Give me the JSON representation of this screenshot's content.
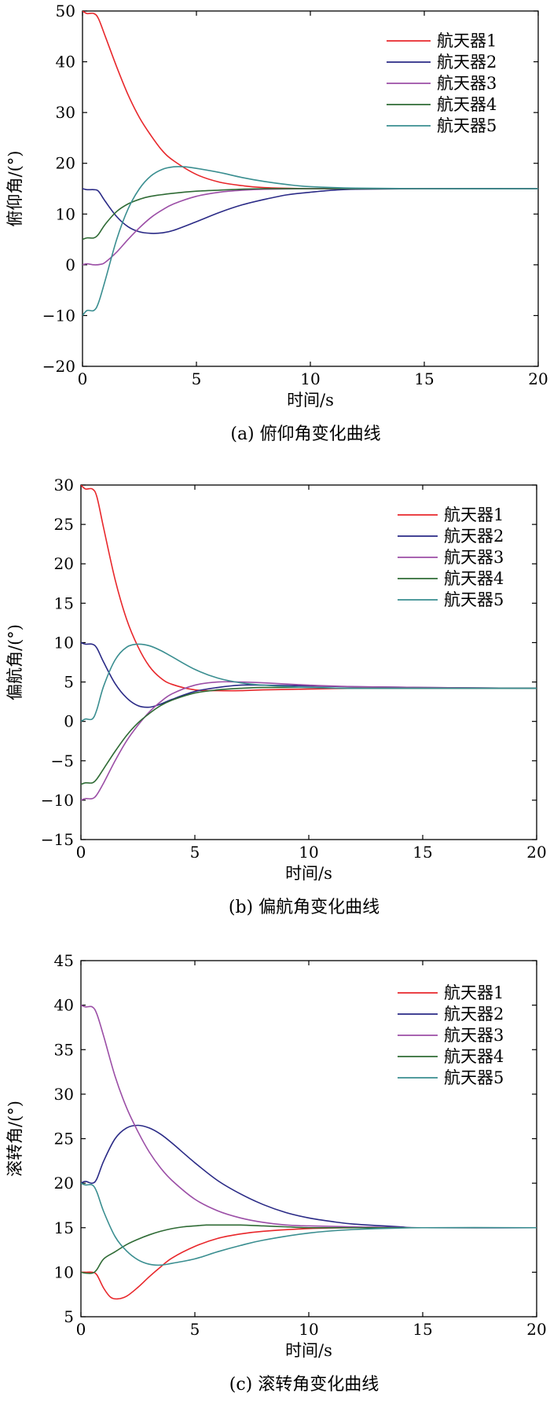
{
  "figure": {
    "background": "#ffffff",
    "series_colors": {
      "航天器1": "#e8272b",
      "航天器2": "#2a2a86",
      "航天器3": "#9b4ea6",
      "航天器4": "#2f6b35",
      "航天器5": "#3a8e90"
    }
  },
  "chart_data": [
    {
      "type": "line",
      "caption": "(a) 俯仰角变化曲线",
      "xlabel": "时间/s",
      "ylabel": "俯仰角/(°)",
      "xlim": [
        0,
        20
      ],
      "ylim": [
        -20,
        50
      ],
      "xticks": [
        0,
        5,
        10,
        15,
        20
      ],
      "yticks": [
        -20,
        -10,
        0,
        10,
        20,
        30,
        40,
        50
      ],
      "grid": false,
      "legend_position": "top-right",
      "series": [
        {
          "name": "航天器1",
          "color": "#e8272b",
          "x": [
            0,
            0.2,
            0.5,
            0.7,
            1,
            1.5,
            2,
            2.5,
            3,
            3.5,
            4,
            5,
            6,
            7,
            8,
            10,
            12,
            15,
            20
          ],
          "y": [
            50,
            49.5,
            49.5,
            48.5,
            45,
            39,
            33.5,
            29,
            25.5,
            22.5,
            20.5,
            17.8,
            16.3,
            15.6,
            15.2,
            15,
            15,
            15,
            15
          ]
        },
        {
          "name": "航天器2",
          "color": "#2a2a86",
          "x": [
            0,
            0.2,
            0.5,
            0.7,
            1,
            1.5,
            2,
            2.5,
            3,
            3.5,
            4,
            5,
            6,
            7,
            8,
            9,
            10,
            11,
            12,
            15,
            20
          ],
          "y": [
            15,
            14.8,
            14.8,
            14.5,
            12.5,
            9.5,
            7.5,
            6.5,
            6.2,
            6.3,
            6.8,
            8.5,
            10.3,
            11.8,
            12.9,
            13.8,
            14.3,
            14.7,
            14.9,
            15,
            15
          ]
        },
        {
          "name": "航天器3",
          "color": "#9b4ea6",
          "x": [
            0,
            0.2,
            0.5,
            0.8,
            1,
            1.5,
            2,
            2.5,
            3,
            3.5,
            4,
            5,
            6,
            7,
            8,
            10,
            12,
            15,
            20
          ],
          "y": [
            0,
            0.2,
            0,
            0.1,
            0.5,
            2.5,
            5,
            7.3,
            9.3,
            10.8,
            12,
            13.5,
            14.3,
            14.7,
            14.9,
            15,
            15,
            15,
            15
          ]
        },
        {
          "name": "航天器4",
          "color": "#2f6b35",
          "x": [
            0,
            0.2,
            0.5,
            0.7,
            1,
            1.5,
            2,
            2.5,
            3,
            4,
            5,
            6,
            7,
            8,
            10,
            12,
            15,
            20
          ],
          "y": [
            5,
            5.3,
            5.3,
            6,
            8,
            10.5,
            12,
            12.9,
            13.5,
            14.1,
            14.5,
            14.7,
            14.9,
            15,
            15,
            15,
            15,
            15
          ]
        },
        {
          "name": "航天器5",
          "color": "#3a8e90",
          "x": [
            0,
            0.2,
            0.5,
            0.7,
            1,
            1.5,
            2,
            2.5,
            3,
            3.5,
            4,
            4.5,
            5,
            6,
            7,
            8,
            9,
            10,
            12,
            15,
            20
          ],
          "y": [
            -10,
            -9,
            -9,
            -7.5,
            -3,
            5,
            11,
            15,
            17.5,
            18.8,
            19.3,
            19.3,
            19,
            18.2,
            17.2,
            16.4,
            15.8,
            15.4,
            15.1,
            15,
            15
          ]
        }
      ]
    },
    {
      "type": "line",
      "caption": "(b) 偏航角变化曲线",
      "xlabel": "时间/s",
      "ylabel": "偏航角/(°)",
      "xlim": [
        0,
        20
      ],
      "ylim": [
        -15,
        30
      ],
      "xticks": [
        0,
        5,
        10,
        15,
        20
      ],
      "yticks": [
        -15,
        -10,
        -5,
        0,
        5,
        10,
        15,
        20,
        25,
        30
      ],
      "grid": false,
      "legend_position": "top-right",
      "series": [
        {
          "name": "航天器1",
          "color": "#e8272b",
          "x": [
            0,
            0.2,
            0.5,
            0.7,
            1,
            1.5,
            2,
            2.5,
            3,
            3.5,
            4,
            5,
            6,
            7,
            8,
            10,
            12,
            15,
            20
          ],
          "y": [
            30,
            29.5,
            29.5,
            28.5,
            24.5,
            18,
            13,
            9.5,
            7,
            5.5,
            4.7,
            4,
            3.9,
            3.9,
            4,
            4.1,
            4.2,
            4.2,
            4.2
          ]
        },
        {
          "name": "航天器2",
          "color": "#2a2a86",
          "x": [
            0,
            0.2,
            0.5,
            0.7,
            1,
            1.5,
            2,
            2.5,
            3,
            3.5,
            4,
            5,
            6,
            7,
            8,
            10,
            12,
            15,
            20
          ],
          "y": [
            10,
            9.8,
            9.8,
            9.3,
            7.5,
            4.8,
            3,
            2,
            1.8,
            2.2,
            2.8,
            3.8,
            4.3,
            4.6,
            4.6,
            4.5,
            4.4,
            4.3,
            4.2
          ]
        },
        {
          "name": "航天器3",
          "color": "#9b4ea6",
          "x": [
            0,
            0.2,
            0.5,
            0.7,
            1,
            1.5,
            2,
            2.5,
            3,
            3.5,
            4,
            5,
            6,
            7,
            8,
            10,
            12,
            15,
            20
          ],
          "y": [
            -10,
            -9.8,
            -9.8,
            -9.3,
            -7.8,
            -5,
            -2.5,
            -0.5,
            1.2,
            2.5,
            3.5,
            4.6,
            5,
            5,
            4.9,
            4.6,
            4.4,
            4.3,
            4.2
          ]
        },
        {
          "name": "航天器4",
          "color": "#2f6b35",
          "x": [
            0,
            0.2,
            0.5,
            0.7,
            1,
            1.5,
            2,
            2.5,
            3,
            3.5,
            4,
            5,
            6,
            7,
            8,
            10,
            12,
            15,
            20
          ],
          "y": [
            -8,
            -7.8,
            -7.8,
            -7.3,
            -6,
            -3.8,
            -1.8,
            -0.2,
            1,
            2,
            2.7,
            3.6,
            4,
            4.2,
            4.3,
            4.3,
            4.2,
            4.2,
            4.2
          ]
        },
        {
          "name": "航天器5",
          "color": "#3a8e90",
          "x": [
            0,
            0.2,
            0.5,
            0.7,
            1,
            1.5,
            2,
            2.5,
            3,
            3.5,
            4,
            5,
            6,
            7,
            8,
            10,
            12,
            15,
            20
          ],
          "y": [
            0,
            0.3,
            0.3,
            1.5,
            4.5,
            7.8,
            9.4,
            9.8,
            9.6,
            9,
            8.2,
            6.6,
            5.5,
            4.9,
            4.6,
            4.3,
            4.2,
            4.2,
            4.2
          ]
        }
      ]
    },
    {
      "type": "line",
      "caption": "(c) 滚转角变化曲线",
      "xlabel": "时间/s",
      "ylabel": "滚转角/(°)",
      "xlim": [
        0,
        20
      ],
      "ylim": [
        5,
        45
      ],
      "xticks": [
        0,
        5,
        10,
        15,
        20
      ],
      "yticks": [
        5,
        10,
        15,
        20,
        25,
        30,
        35,
        40,
        45
      ],
      "grid": false,
      "legend_position": "top-right",
      "series": [
        {
          "name": "航天器1",
          "color": "#e8272b",
          "x": [
            0,
            0.2,
            0.5,
            0.7,
            1,
            1.3,
            1.6,
            2,
            2.5,
            3,
            3.5,
            4,
            5,
            6,
            7,
            8,
            10,
            12,
            15,
            20
          ],
          "y": [
            10,
            10,
            10,
            9.7,
            8.2,
            7.2,
            7,
            7.3,
            8.3,
            9.5,
            10.6,
            11.6,
            12.9,
            13.8,
            14.3,
            14.6,
            14.9,
            15,
            15,
            15
          ]
        },
        {
          "name": "航天器2",
          "color": "#2a2a86",
          "x": [
            0,
            0.2,
            0.5,
            0.7,
            1,
            1.5,
            2,
            2.5,
            3,
            3.5,
            4,
            5,
            6,
            7,
            8,
            9,
            10,
            11,
            12,
            14,
            15,
            20
          ],
          "y": [
            20,
            20.2,
            20,
            20.5,
            22.5,
            25,
            26.2,
            26.5,
            26.2,
            25.5,
            24.5,
            22.3,
            20.3,
            18.8,
            17.6,
            16.7,
            16.1,
            15.7,
            15.4,
            15.1,
            15,
            15
          ]
        },
        {
          "name": "航天器3",
          "color": "#9b4ea6",
          "x": [
            0,
            0.2,
            0.5,
            0.7,
            1,
            1.5,
            2,
            2.5,
            3,
            3.5,
            4,
            5,
            6,
            7,
            8,
            9,
            10,
            12,
            15,
            20
          ],
          "y": [
            40,
            39.8,
            39.8,
            39,
            36.5,
            32,
            28.5,
            25.8,
            23.5,
            21.7,
            20.3,
            18.2,
            16.9,
            16.1,
            15.6,
            15.3,
            15.2,
            15.1,
            15,
            15
          ]
        },
        {
          "name": "航天器4",
          "color": "#2f6b35",
          "x": [
            0,
            0.2,
            0.5,
            0.7,
            1,
            1.5,
            2,
            2.5,
            3,
            3.5,
            4,
            4.5,
            5,
            5.5,
            6,
            7,
            8,
            9,
            10,
            12,
            15,
            20
          ],
          "y": [
            10,
            9.9,
            9.9,
            10.3,
            11.5,
            12.3,
            13.1,
            13.7,
            14.2,
            14.6,
            14.9,
            15.1,
            15.2,
            15.3,
            15.3,
            15.3,
            15.2,
            15.1,
            15,
            15,
            15,
            15
          ]
        },
        {
          "name": "航天器5",
          "color": "#3a8e90",
          "x": [
            0,
            0.2,
            0.5,
            0.7,
            1,
            1.5,
            2,
            2.5,
            3,
            3.5,
            4,
            5,
            6,
            7,
            8,
            10,
            12,
            15,
            20
          ],
          "y": [
            20,
            19.8,
            19.8,
            19,
            16.8,
            14,
            12.4,
            11.4,
            10.9,
            10.8,
            11,
            11.5,
            12.3,
            13,
            13.6,
            14.4,
            14.8,
            15,
            15
          ]
        }
      ]
    }
  ]
}
